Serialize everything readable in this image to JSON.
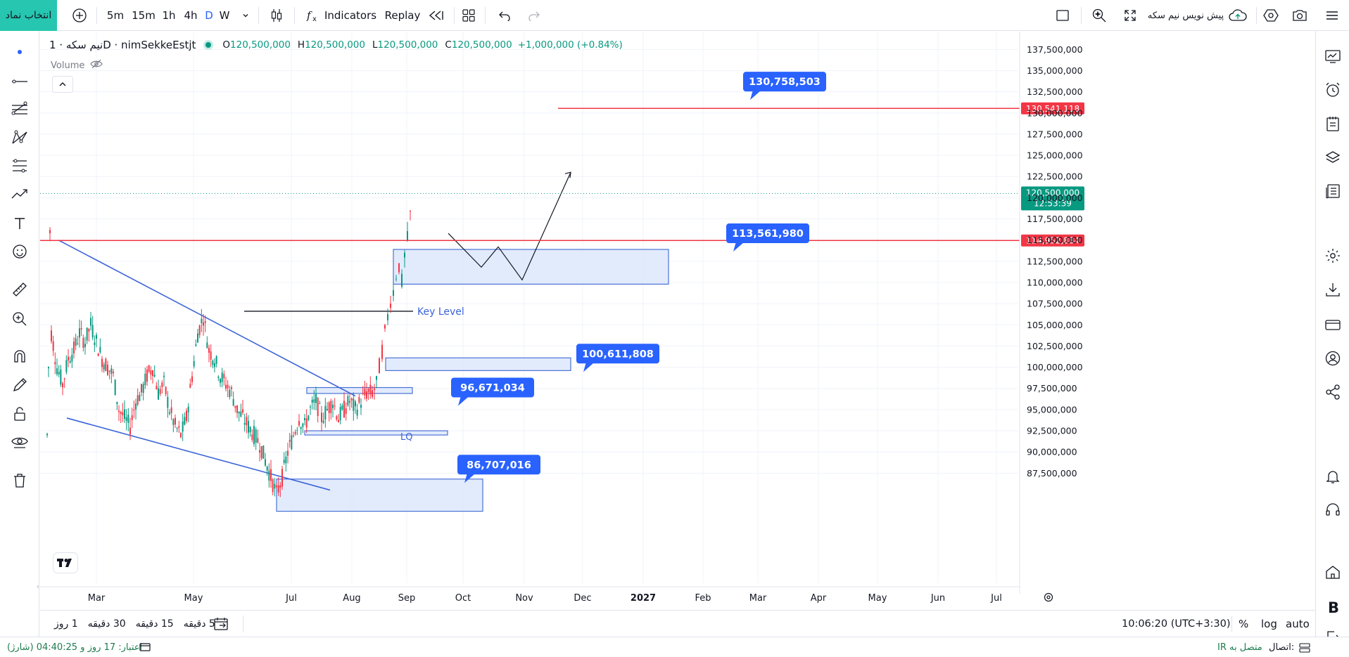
{
  "topbar": {
    "symbol_select_label": "انتخاب نماد",
    "intervals": [
      "5m",
      "15m",
      "1h",
      "4h",
      "D",
      "W"
    ],
    "active_interval": "D",
    "indicators_label": "Indicators",
    "replay_label": "Replay",
    "preview_label": "پیش نویس نیم سکه"
  },
  "legend": {
    "title": "نیم سکه · 1D · nimSekkeEstjt",
    "open_label": "O",
    "open": "120,500,000",
    "high_label": "H",
    "high": "120,500,000",
    "low_label": "L",
    "low": "120,500,000",
    "close_label": "C",
    "close": "120,500,000",
    "change": "+1,000,000 (+0.84%)",
    "volume_label": "Volume"
  },
  "chart_data": {
    "type": "candlestick",
    "x_tick_labels": [
      "Mar",
      "May",
      "Jul",
      "Aug",
      "Sep",
      "Oct",
      "Nov",
      "Dec",
      "2027",
      "Feb",
      "Mar",
      "Apr",
      "May",
      "Jun",
      "Jul"
    ],
    "y_tick_labels": [
      "137,500,000",
      "135,000,000",
      "132,500,000",
      "130,000,000",
      "127,500,000",
      "125,000,000",
      "122,500,000",
      "120,000,000",
      "117,500,000",
      "115,000,000",
      "112,500,000",
      "110,000,000",
      "107,500,000",
      "105,000,000",
      "102,500,000",
      "100,000,000",
      "97,500,000",
      "95,000,000",
      "92,500,000",
      "90,000,000",
      "87,500,000"
    ],
    "ylim": [
      86500000,
      138200000
    ],
    "last_price_label": "120,500,000",
    "last_price": 120500000,
    "countdown": "12:53:39",
    "horizontal_lines": [
      {
        "label": "130,541,118",
        "value": 130541118,
        "color": "#f23645"
      },
      {
        "label": "114,952,884",
        "value": 114952884,
        "color": "#f23645"
      }
    ],
    "callouts": [
      "130,758,503",
      "113,561,980",
      "100,611,808",
      "96,671,034",
      "86,707,016"
    ],
    "text_annotations": [
      "Key Level",
      "LQ"
    ],
    "colors": {
      "up": "#089981",
      "down": "#f23645",
      "trend": "#3a63d8",
      "zone_fill": "#dde8fb",
      "zone_border": "#4a72d6",
      "callout": "#2962ff"
    }
  },
  "bottombar": {
    "ranges": [
      "5 دقیقه",
      "15 دقیقه",
      "30 دقیقه",
      "1 روز"
    ],
    "time": "10:06:20 (UTC+3:30)",
    "percent": "%",
    "log": "log",
    "auto": "auto"
  },
  "statusbar": {
    "credit": "اعتبار: 17 روز و 04:40:25 (شارژ)",
    "connection_label": "اتصال:",
    "connection_status": "متصل به IR"
  }
}
